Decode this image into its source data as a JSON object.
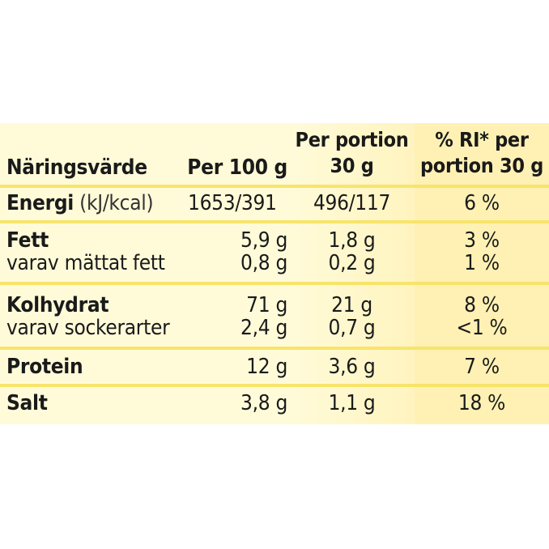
{
  "table": {
    "headers": {
      "name": "Näringsvärde",
      "per100": "Per 100 g",
      "per_portion_line1": "Per portion",
      "per_portion_line2": "30 g",
      "ri_line1": "% RI* per",
      "ri_line2": "portion 30 g"
    },
    "rows": {
      "energi": {
        "label": "Energi",
        "unit": "(kJ/kcal)",
        "per100": "1653/391",
        "portion": "496/117",
        "ri": "6 %"
      },
      "fett": {
        "label": "Fett",
        "per100": "5,9 g",
        "portion": "1,8 g",
        "ri": "3 %"
      },
      "mattat": {
        "label": "varav mättat fett",
        "per100": "0,8 g",
        "portion": "0,2 g",
        "ri": "1 %"
      },
      "kolhydrat": {
        "label": "Kolhydrat",
        "per100": "71 g",
        "portion": "21 g",
        "ri": "8 %"
      },
      "socker": {
        "label": "varav sockerarter",
        "per100": "2,4 g",
        "portion": "0,7 g",
        "ri": "<1 %"
      },
      "protein": {
        "label": "Protein",
        "per100": "12 g",
        "portion": "3,6 g",
        "ri": "7 %"
      },
      "salt": {
        "label": "Salt",
        "per100": "3,8 g",
        "portion": "1,1 g",
        "ri": "18 %"
      }
    }
  },
  "colors": {
    "background": "#fffbd9",
    "separator": "#f7e46a",
    "text": "#1a1a1a"
  }
}
